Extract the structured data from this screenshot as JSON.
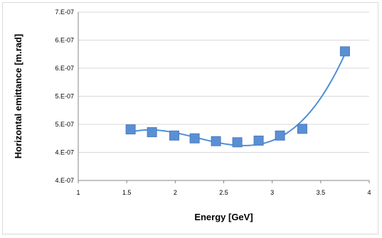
{
  "chart_data": {
    "type": "scatter",
    "title": "",
    "xlabel": "Energy [GeV]",
    "ylabel": "Horizontal emittance [m.rad]",
    "xlim": [
      1,
      4
    ],
    "ylim": [
      4e-07,
      7e-07
    ],
    "x_ticks": [
      "1",
      "1.5",
      "2",
      "2.5",
      "3",
      "3.5",
      "4"
    ],
    "y_ticks": [
      "4.E-07",
      "4.E-07",
      "5.E-07",
      "5.E-07",
      "6.E-07",
      "6.E-07",
      "7.E-07"
    ],
    "grid": "horizontal",
    "legend": "none",
    "series": [
      {
        "marker": "square",
        "trendline": "polynomial",
        "x": [
          1.54,
          1.76,
          1.99,
          2.2,
          2.42,
          2.64,
          2.86,
          3.08,
          3.31,
          3.75
        ],
        "y": [
          4.91e-07,
          4.86e-07,
          4.8e-07,
          4.75e-07,
          4.7e-07,
          4.68e-07,
          4.71e-07,
          4.8e-07,
          4.92e-07,
          6.3e-07
        ]
      }
    ],
    "colors": {
      "marker": "#5b8fd4",
      "marker_edge": "#4a7cc0",
      "line": "#4d8fd6",
      "grid": "#d9d9d9",
      "axis": "#868686"
    }
  }
}
